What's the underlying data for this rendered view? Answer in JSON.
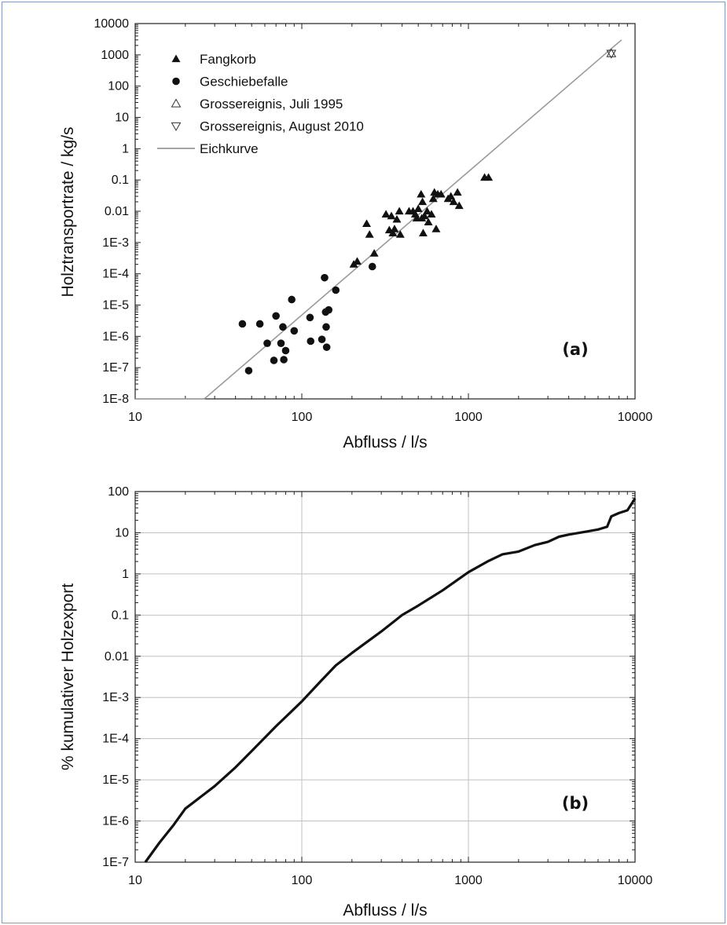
{
  "colors": {
    "frame": "#7f9bbd",
    "axes": "#222222",
    "grid": "#c0c0c0",
    "fit": "#9a9a9a",
    "marker": "#111111",
    "curve": "#111111"
  },
  "chart_data": [
    {
      "type": "scatter",
      "panel_label": "(a)",
      "xlabel": "Abfluss / l/s",
      "ylabel": "Holztransportrate / kg/s",
      "xscale": "log",
      "yscale": "log",
      "xlim": [
        10,
        10000
      ],
      "ylim": [
        1e-08,
        10000
      ],
      "xticks": [
        "10",
        "100",
        "1000",
        "10000"
      ],
      "yticks": [
        "1E-8",
        "1E-7",
        "1E-6",
        "1E-5",
        "1E-4",
        "1E-3",
        "0.01",
        "0.1",
        "1",
        "10",
        "100",
        "1000",
        "10000"
      ],
      "grid": false,
      "legend_position": "top-left",
      "legend": [
        {
          "label": "Fangkorb",
          "symbol": "triangle-filled"
        },
        {
          "label": "Geschiebefalle",
          "symbol": "circle-filled"
        },
        {
          "label": "Grossereignis, Juli 1995",
          "symbol": "triangle-open"
        },
        {
          "label": "Grossereignis, August 2010",
          "symbol": "triangle-down-open"
        },
        {
          "label": "Eichkurve",
          "symbol": "line"
        }
      ],
      "series": [
        {
          "name": "Fangkorb",
          "symbol": "triangle-filled",
          "points": [
            [
              205,
              0.0002
            ],
            [
              215,
              0.00025
            ],
            [
              245,
              0.004
            ],
            [
              255,
              0.0018
            ],
            [
              272,
              0.00045
            ],
            [
              320,
              0.008
            ],
            [
              335,
              0.0025
            ],
            [
              345,
              0.007
            ],
            [
              352,
              0.002
            ],
            [
              360,
              0.0027
            ],
            [
              372,
              0.0055
            ],
            [
              385,
              0.01
            ],
            [
              390,
              0.0018
            ],
            [
              440,
              0.01
            ],
            [
              465,
              0.01
            ],
            [
              480,
              0.008
            ],
            [
              490,
              0.006
            ],
            [
              500,
              0.012
            ],
            [
              520,
              0.035
            ],
            [
              525,
              0.006
            ],
            [
              530,
              0.02
            ],
            [
              535,
              0.002
            ],
            [
              545,
              0.007
            ],
            [
              565,
              0.01
            ],
            [
              575,
              0.0045
            ],
            [
              600,
              0.008
            ],
            [
              615,
              0.025
            ],
            [
              625,
              0.04
            ],
            [
              640,
              0.0027
            ],
            [
              655,
              0.035
            ],
            [
              685,
              0.035
            ],
            [
              755,
              0.025
            ],
            [
              785,
              0.03
            ],
            [
              815,
              0.02
            ],
            [
              860,
              0.04
            ],
            [
              880,
              0.015
            ],
            [
              1250,
              0.12
            ],
            [
              1320,
              0.12
            ]
          ]
        },
        {
          "name": "Geschiebefalle",
          "symbol": "circle-filled",
          "points": [
            [
              44,
              2.5e-06
            ],
            [
              48,
              8e-08
            ],
            [
              56,
              2.5e-06
            ],
            [
              62,
              6e-07
            ],
            [
              68,
              1.7e-07
            ],
            [
              70,
              4.5e-06
            ],
            [
              75,
              6e-07
            ],
            [
              77,
              2e-06
            ],
            [
              78,
              1.8e-07
            ],
            [
              80,
              3.5e-07
            ],
            [
              87,
              1.5e-05
            ],
            [
              90,
              1.5e-06
            ],
            [
              112,
              4e-06
            ],
            [
              113,
              7e-07
            ],
            [
              132,
              8e-07
            ],
            [
              137,
              7.5e-05
            ],
            [
              139,
              6e-06
            ],
            [
              140,
              2e-06
            ],
            [
              141,
              4.5e-07
            ],
            [
              145,
              7e-06
            ],
            [
              160,
              3e-05
            ],
            [
              265,
              0.00017
            ]
          ]
        },
        {
          "name": "Grossereignis, Juli 1995",
          "symbol": "triangle-open",
          "points": [
            [
              7200,
              1100
            ]
          ]
        },
        {
          "name": "Grossereignis, August 2010",
          "symbol": "triangle-down-open",
          "points": [
            [
              7200,
              1100
            ]
          ]
        },
        {
          "name": "Eichkurve",
          "symbol": "line",
          "points": [
            [
              10,
              1e-08
            ],
            [
              26,
              1e-08
            ],
            [
              8300,
              3000
            ]
          ]
        }
      ]
    },
    {
      "type": "line",
      "panel_label": "(b)",
      "xlabel": "Abfluss / l/s",
      "ylabel": "% kumulativer Holzexport",
      "xscale": "log",
      "yscale": "log",
      "xlim": [
        10,
        10000
      ],
      "ylim": [
        1e-07,
        100
      ],
      "xticks": [
        "10",
        "100",
        "1000",
        "10000"
      ],
      "yticks": [
        "1E-7",
        "1E-6",
        "1E-5",
        "1E-4",
        "1E-3",
        "0.01",
        "0.1",
        "1",
        "10",
        "100"
      ],
      "grid": true,
      "series": [
        {
          "name": "",
          "points": [
            [
              11.5,
              1e-07
            ],
            [
              14,
              3e-07
            ],
            [
              17,
              8e-07
            ],
            [
              20,
              2e-06
            ],
            [
              25,
              4e-06
            ],
            [
              30,
              7e-06
            ],
            [
              40,
              2e-05
            ],
            [
              50,
              5e-05
            ],
            [
              70,
              0.0002
            ],
            [
              100,
              0.0008
            ],
            [
              130,
              0.0025
            ],
            [
              160,
              0.006
            ],
            [
              200,
              0.012
            ],
            [
              300,
              0.04
            ],
            [
              400,
              0.1
            ],
            [
              500,
              0.17
            ],
            [
              700,
              0.4
            ],
            [
              1000,
              1.1
            ],
            [
              1300,
              2
            ],
            [
              1600,
              3
            ],
            [
              2000,
              3.5
            ],
            [
              2500,
              5
            ],
            [
              3000,
              6
            ],
            [
              3500,
              8
            ],
            [
              4000,
              9
            ],
            [
              5000,
              10.5
            ],
            [
              6000,
              12
            ],
            [
              6800,
              14
            ],
            [
              7200,
              25
            ],
            [
              8000,
              30
            ],
            [
              9000,
              35
            ],
            [
              10000,
              68
            ]
          ]
        }
      ]
    }
  ]
}
